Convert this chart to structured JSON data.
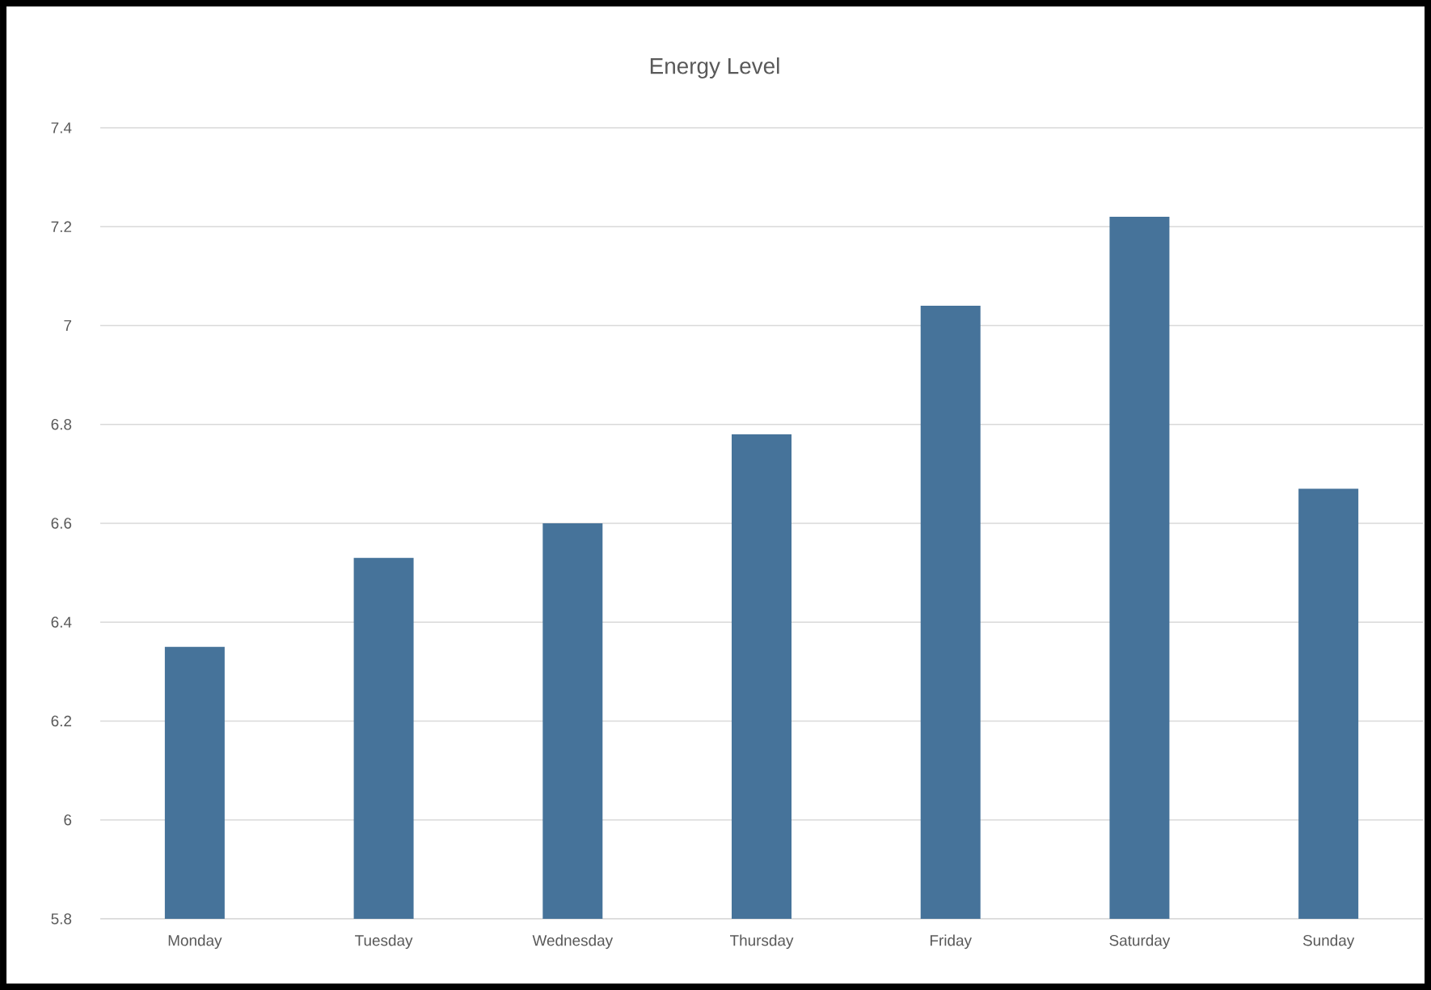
{
  "chart_data": {
    "type": "bar",
    "title": "Energy Level",
    "categories": [
      "Monday",
      "Tuesday",
      "Wednesday",
      "Thursday",
      "Friday",
      "Saturday",
      "Sunday"
    ],
    "values": [
      6.35,
      6.53,
      6.6,
      6.78,
      7.04,
      7.22,
      6.67
    ],
    "color": "#46739a",
    "ylim": [
      5.8,
      7.4
    ],
    "yticks": [
      5.8,
      6,
      6.2,
      6.4,
      6.6,
      6.8,
      7,
      7.2,
      7.4
    ],
    "grid": "y"
  }
}
